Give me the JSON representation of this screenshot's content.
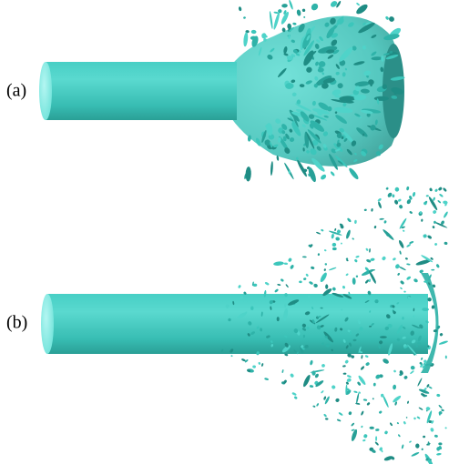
{
  "panels": [
    {
      "label": "(a)"
    },
    {
      "label": "(b)"
    }
  ]
}
